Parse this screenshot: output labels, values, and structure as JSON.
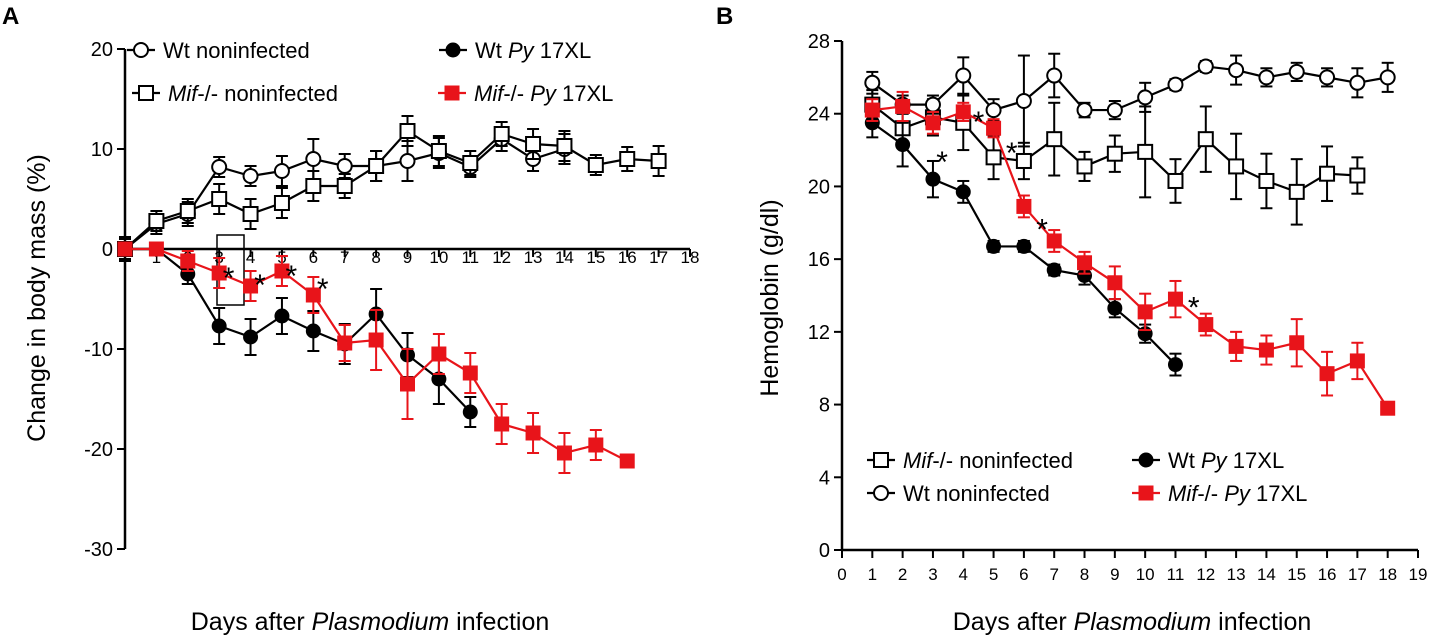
{
  "chart_data": [
    {
      "panel": "A",
      "type": "line",
      "ylabel": "Change in body mass (%)",
      "xlabel": {
        "before": "Days after ",
        "italic": "Plasmodium",
        "after": " infection"
      },
      "xlim": [
        0,
        18
      ],
      "ylim": [
        -30,
        20
      ],
      "yticks": [
        20,
        10,
        0,
        -10,
        -20,
        -30
      ],
      "yticks_text": [
        "20",
        "10",
        "0",
        "-10",
        "-20",
        "-30"
      ],
      "xticks": [
        1,
        2,
        3,
        4,
        5,
        6,
        7,
        8,
        9,
        10,
        11,
        12,
        13,
        14,
        15,
        16,
        17,
        18
      ],
      "xticks_text": [
        "1",
        "2",
        "3",
        "4",
        "5",
        "6",
        "7",
        "8",
        "9",
        "10",
        "11",
        "12",
        "13",
        "14",
        "15",
        "16",
        "17",
        "18"
      ],
      "series": [
        {
          "key": "wt_non",
          "legend": {
            "italic": "",
            "text": "Wt noninfected"
          },
          "marker": "circle-open",
          "color": "#000000",
          "x": [
            0,
            1,
            2,
            3,
            4,
            5,
            6,
            7,
            8,
            9,
            10,
            11,
            12,
            13,
            14
          ],
          "y": [
            0,
            2.5,
            3.5,
            8.2,
            7.3,
            7.8,
            9.0,
            8.3,
            8.3,
            8.8,
            9.6,
            8.2,
            11.0,
            9.0,
            10.0
          ],
          "err": [
            1.2,
            1.0,
            1.2,
            1.0,
            1.0,
            1.5,
            2.0,
            1.2,
            1.5,
            2.0,
            1.5,
            1.0,
            1.2,
            1.2,
            1.5
          ]
        },
        {
          "key": "mif_non",
          "legend": {
            "italic": "Mif",
            "text": "-/- noninfected"
          },
          "marker": "square-open",
          "color": "#000000",
          "x": [
            0,
            1,
            2,
            3,
            4,
            5,
            6,
            7,
            8,
            9,
            10,
            11,
            12,
            13,
            14,
            15,
            16,
            17
          ],
          "y": [
            0,
            2.8,
            3.8,
            5.0,
            3.5,
            4.6,
            6.3,
            6.3,
            8.3,
            11.8,
            9.8,
            8.6,
            11.5,
            10.5,
            10.3,
            8.4,
            9.0,
            8.8
          ],
          "err": [
            1.2,
            1.0,
            1.2,
            1.5,
            1.5,
            1.5,
            1.5,
            1.2,
            1.5,
            1.5,
            1.5,
            1.2,
            1.2,
            1.5,
            1.5,
            1.0,
            1.2,
            1.5
          ]
        },
        {
          "key": "wt_py",
          "legend": {
            "italic": "Py",
            "before": "Wt  ",
            "text": " 17XL"
          },
          "marker": "circle-filled",
          "color": "#000000",
          "x": [
            0,
            1,
            2,
            3,
            4,
            5,
            6,
            7,
            8,
            9,
            10,
            11
          ],
          "y": [
            0,
            0,
            -2.5,
            -7.7,
            -8.8,
            -6.7,
            -8.2,
            -9.5,
            -6.5,
            -10.6,
            -13.0,
            -16.3
          ],
          "err": [
            1.0,
            0.5,
            1.0,
            1.8,
            1.8,
            1.8,
            2.0,
            2.0,
            2.5,
            2.2,
            2.5,
            1.5
          ]
        },
        {
          "key": "mif_py",
          "legend": {
            "italic": "Mif",
            "text": "-/-  ",
            "italic2": "Py",
            "text2": " 17XL"
          },
          "marker": "square-filled",
          "color": "#e8141a",
          "x": [
            0,
            1,
            2,
            3,
            4,
            5,
            6,
            7,
            8,
            9,
            10,
            11,
            12,
            13,
            14,
            15,
            16
          ],
          "y": [
            0,
            0,
            -1.2,
            -2.4,
            -3.7,
            -2.2,
            -4.6,
            -9.4,
            -9.1,
            -13.5,
            -10.5,
            -12.4,
            -17.5,
            -18.4,
            -20.4,
            -19.6,
            -21.2
          ],
          "err": [
            0.5,
            0.5,
            1.0,
            1.5,
            1.5,
            1.5,
            1.8,
            1.8,
            3.0,
            3.5,
            2.0,
            2.0,
            2.0,
            2.0,
            2.0,
            1.5,
            0.5
          ]
        }
      ],
      "annotations": [
        {
          "text": "*",
          "x": 3.3,
          "y": -1.7
        },
        {
          "text": "*",
          "x": 4.3,
          "y": -2.4
        },
        {
          "text": "*",
          "x": 5.3,
          "y": -1.5
        },
        {
          "text": "*",
          "x": 6.3,
          "y": -2.8
        }
      ]
    },
    {
      "panel": "B",
      "type": "line",
      "ylabel": "Hemoglobin (g/dl)",
      "xlabel": {
        "before": "Days after ",
        "italic": "Plasmodium",
        "after": " infection"
      },
      "xlim": [
        0,
        19
      ],
      "ylim": [
        0,
        28
      ],
      "yticks": [
        28,
        24,
        20,
        16,
        12,
        8,
        4,
        0
      ],
      "yticks_text": [
        "28",
        "24",
        "20",
        "16",
        "12",
        "8",
        "4",
        "0"
      ],
      "xticks": [
        0,
        1,
        2,
        3,
        4,
        5,
        6,
        7,
        8,
        9,
        10,
        11,
        12,
        13,
        14,
        15,
        16,
        17,
        18,
        19
      ],
      "xticks_text": [
        "0",
        "1",
        "2",
        "3",
        "4",
        "5",
        "6",
        "7",
        "8",
        "9",
        "10",
        "11",
        "12",
        "13",
        "14",
        "15",
        "16",
        "17",
        "18",
        "19"
      ],
      "series": [
        {
          "key": "mif_non",
          "legend": {
            "italic": "Mif",
            "text": "-/- noninfected"
          },
          "marker": "square-open",
          "color": "#000000",
          "x": [
            1,
            2,
            3,
            4,
            5,
            6,
            7,
            8,
            9,
            10,
            11,
            12,
            13,
            14,
            15,
            16,
            17
          ],
          "y": [
            24.5,
            23.2,
            23.8,
            23.5,
            21.6,
            21.4,
            22.6,
            21.1,
            21.8,
            21.9,
            20.3,
            22.6,
            21.1,
            20.3,
            19.7,
            20.7,
            20.6
          ],
          "err": [
            0.8,
            0.8,
            1.0,
            1.5,
            1.2,
            1.0,
            2.0,
            0.8,
            1.0,
            2.5,
            1.2,
            1.8,
            1.8,
            1.5,
            1.8,
            1.5,
            1.0
          ]
        },
        {
          "key": "wt_non",
          "legend": {
            "italic": "",
            "text": "Wt  noninfected"
          },
          "marker": "circle-open",
          "color": "#000000",
          "x": [
            1,
            2,
            3,
            4,
            5,
            6,
            7,
            8,
            9,
            10,
            11,
            12,
            13,
            14,
            15,
            16,
            17,
            18
          ],
          "y": [
            25.7,
            24.5,
            24.5,
            26.1,
            24.2,
            24.7,
            26.1,
            24.2,
            24.2,
            24.9,
            25.6,
            26.6,
            26.4,
            26.0,
            26.3,
            26.0,
            25.7,
            26.0
          ],
          "err": [
            0.6,
            0.5,
            0.5,
            1.0,
            0.6,
            2.5,
            1.2,
            0.4,
            0.5,
            0.8,
            0.3,
            0.3,
            0.8,
            0.5,
            0.5,
            0.5,
            0.8,
            0.8
          ]
        },
        {
          "key": "wt_py",
          "legend": {
            "italic": "Py",
            "before": "Wt  ",
            "text": " 17XL"
          },
          "marker": "circle-filled",
          "color": "#000000",
          "x": [
            1,
            2,
            3,
            4,
            5,
            6,
            7,
            8,
            9,
            10,
            11
          ],
          "y": [
            23.5,
            22.3,
            20.4,
            19.7,
            16.7,
            16.7,
            15.4,
            15.1,
            13.3,
            11.9,
            10.2
          ],
          "err": [
            0.8,
            1.2,
            1.0,
            0.6,
            0.3,
            0.3,
            0.3,
            0.5,
            0.5,
            0.5,
            0.6
          ]
        },
        {
          "key": "mif_py",
          "legend": {
            "italic": "Mif",
            "text": "-/-  ",
            "italic2": "Py",
            "text2": " 17XL"
          },
          "marker": "square-filled",
          "color": "#e8141a",
          "x": [
            1,
            2,
            3,
            4,
            5,
            6,
            7,
            8,
            9,
            10,
            11,
            12,
            13,
            14,
            15,
            16,
            17,
            18
          ],
          "y": [
            24.2,
            24.4,
            23.5,
            24.1,
            23.2,
            18.9,
            17.0,
            15.8,
            14.7,
            13.1,
            13.8,
            12.4,
            11.2,
            11.0,
            11.4,
            9.7,
            10.4,
            7.8
          ],
          "err": [
            0.6,
            0.8,
            0.6,
            0.5,
            0.5,
            0.6,
            0.6,
            0.6,
            0.9,
            1.0,
            1.0,
            0.6,
            0.8,
            0.8,
            1.3,
            1.2,
            1.0,
            0.2
          ]
        }
      ],
      "annotations": [
        {
          "text": "*",
          "x": 3.3,
          "y": 22.0
        },
        {
          "text": "*",
          "x": 4.5,
          "y": 24.2
        },
        {
          "text": "*",
          "x": 5.6,
          "y": 22.5
        },
        {
          "text": "*",
          "x": 6.6,
          "y": 18.3
        },
        {
          "text": "*",
          "x": 11.6,
          "y": 14.0
        }
      ]
    }
  ]
}
